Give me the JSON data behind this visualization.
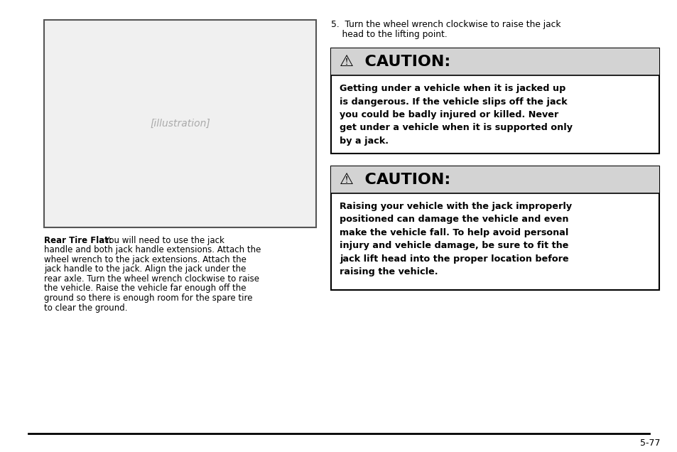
{
  "page_bg": "#ffffff",
  "page_number": "5-77",
  "step5_line1": "5.  Turn the wheel wrench clockwise to raise the jack",
  "step5_line2": "    head to the lifting point.",
  "caution1_header": "⚠  CAUTION:",
  "caution1_body": "Getting under a vehicle when it is jacked up\nis dangerous. If the vehicle slips off the jack\nyou could be badly injured or killed. Never\nget under a vehicle when it is supported only\nby a jack.",
  "caution2_header": "⚠  CAUTION:",
  "caution2_body": "Raising your vehicle with the jack improperly\npositioned can damage the vehicle and even\nmake the vehicle fall. To help avoid personal\ninjury and vehicle damage, be sure to fit the\njack lift head into the proper location before\nraising the vehicle.",
  "left_body_bold": "Rear Tire Flat:",
  "left_body_text": " You will need to use the jack\nhandle and both jack handle extensions. Attach the\nwheel wrench to the jack extensions. Attach the\njack handle to the jack. Align the jack under the\nrear axle. Turn the wheel wrench clockwise to raise\nthe vehicle. Raise the vehicle far enough off the\nground so there is enough room for the spare tire\nto clear the ground.",
  "header_bg": "#d3d3d3",
  "box_border": "#000000",
  "text_color": "#000000",
  "caution_body_bg": "#ffffff",
  "divider_color": "#000000",
  "img_border": "#555555",
  "img_bg": "#f0f0f0"
}
